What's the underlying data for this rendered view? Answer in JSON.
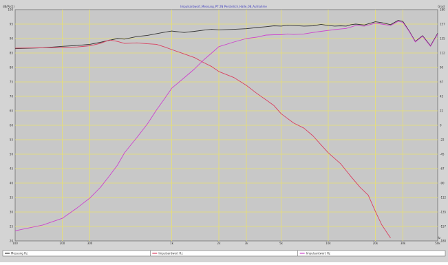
{
  "chart_data": {
    "type": "line",
    "title": "Impulsantwort_Messung_PT 2N Persönlich_Halle_08_Aufnahme",
    "corner_left": "dB/Pa(1)",
    "corner_right": "Grad",
    "xlabel": "Frequenz/Hz",
    "x_scale": "log",
    "xlim": [
      100,
      50000
    ],
    "ylim": [
      20,
      100
    ],
    "y_tick_labels": [
      "100",
      "95",
      "90",
      "85",
      "80",
      "75",
      "70",
      "65",
      "60",
      "55",
      "50",
      "45",
      "40",
      "35",
      "30",
      "25",
      "20"
    ],
    "y2_tick_labels": [
      "180",
      "157",
      "135",
      "112",
      "90",
      "67",
      "45",
      "22",
      "0",
      "-22",
      "-45",
      "-67",
      "-90",
      "-112",
      "-135",
      "-157",
      "-180"
    ],
    "x_tick_labels": [
      "100",
      "200",
      "300",
      "1k",
      "2k",
      "3k",
      "5k",
      "10k",
      "20k",
      "30k",
      "50k"
    ],
    "x_tick_values": [
      100,
      200,
      300,
      1000,
      2000,
      3000,
      5000,
      10000,
      20000,
      30000,
      50000
    ],
    "grid": true,
    "legend_position": "bottom",
    "series": [
      {
        "name": "Messung Hz",
        "color": "#333333",
        "x": [
          100,
          150,
          200,
          250,
          300,
          350,
          400,
          450,
          500,
          600,
          700,
          800,
          900,
          1000,
          1200,
          1400,
          1600,
          1800,
          2000,
          2500,
          3000,
          3500,
          4000,
          4500,
          5000,
          5500,
          6000,
          7000,
          8000,
          9000,
          10000,
          11000,
          12000,
          13000,
          14000,
          15000,
          17000,
          20000,
          22000,
          25000,
          28000,
          30000,
          33000,
          36000,
          40000,
          45000,
          50000
        ],
        "y": [
          86.5,
          86.8,
          87.3,
          87.6,
          88.0,
          88.7,
          89.4,
          90.0,
          89.8,
          90.7,
          91.1,
          91.7,
          92.2,
          92.6,
          92.1,
          92.5,
          92.9,
          93.2,
          93.0,
          93.2,
          93.4,
          93.8,
          94.1,
          94.4,
          94.3,
          94.6,
          94.5,
          94.3,
          94.4,
          94.9,
          94.5,
          94.3,
          94.4,
          94.3,
          94.8,
          95.0,
          94.7,
          95.8,
          95.5,
          94.8,
          96.3,
          95.9,
          92.5,
          89.0,
          91.0,
          87.5,
          91.8
        ]
      },
      {
        "name": "Impulsantwort Hz",
        "color": "#d94060",
        "x": [
          100,
          150,
          200,
          250,
          300,
          350,
          400,
          450,
          500,
          600,
          700,
          800,
          900,
          1000,
          1200,
          1400,
          1600,
          1800,
          2000,
          2500,
          3000,
          3500,
          4000,
          4500,
          5000,
          6000,
          7000,
          8000,
          9000,
          10000,
          12000,
          14000,
          16000,
          18000,
          20000,
          22000,
          25000
        ],
        "y": [
          86.7,
          86.8,
          86.9,
          87.1,
          87.5,
          88.3,
          89.5,
          89.0,
          88.3,
          88.5,
          88.2,
          88.0,
          87.1,
          86.2,
          84.7,
          83.4,
          81.7,
          80.3,
          78.6,
          76.5,
          73.8,
          71.0,
          68.8,
          66.8,
          64.0,
          60.8,
          59.0,
          56.3,
          53.2,
          50.5,
          46.7,
          42.2,
          38.5,
          35.8,
          30.2,
          25.5,
          21.0
        ]
      },
      {
        "name": "Impulsantwort Hz",
        "color": "#cc44cc",
        "x": [
          100,
          150,
          200,
          250,
          300,
          350,
          400,
          450,
          500,
          600,
          700,
          800,
          900,
          1000,
          1200,
          1400,
          1600,
          1800,
          2000,
          2500,
          3000,
          3500,
          4000,
          4500,
          5000,
          5500,
          6000,
          7000,
          8000,
          9000,
          10000,
          11000,
          12000,
          13000,
          14000,
          15000,
          17000,
          20000,
          22000,
          25000,
          28000,
          30000,
          33000,
          36000,
          40000,
          45000,
          50000
        ],
        "y": [
          23.5,
          25.5,
          27.8,
          31.5,
          34.8,
          38.5,
          42.5,
          46.2,
          50.5,
          55.8,
          60.5,
          65.3,
          69.2,
          72.8,
          76.4,
          79.5,
          82.6,
          85.0,
          87.2,
          88.8,
          90.0,
          90.5,
          91.2,
          91.3,
          91.3,
          91.6,
          91.4,
          91.6,
          92.1,
          92.5,
          92.8,
          93.1,
          93.3,
          93.5,
          94.0,
          94.5,
          94.3,
          95.3,
          95.0,
          94.5,
          96.0,
          95.6,
          92.3,
          88.8,
          90.8,
          87.3,
          91.6
        ]
      }
    ]
  }
}
